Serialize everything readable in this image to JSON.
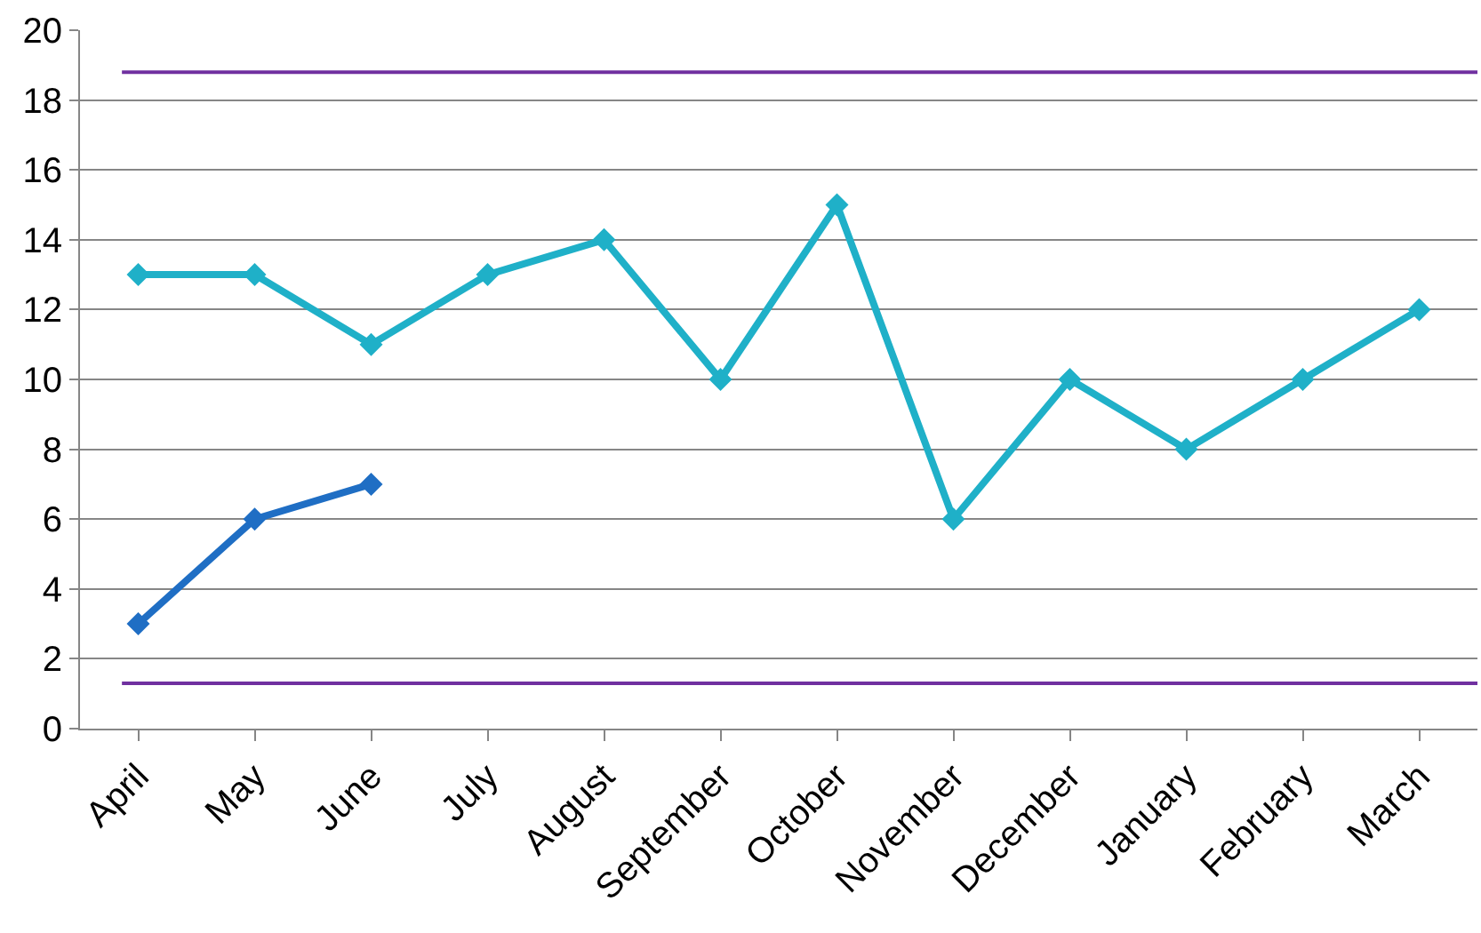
{
  "chart_data": {
    "type": "line",
    "categories": [
      "April",
      "May",
      "June",
      "July",
      "August",
      "September",
      "October",
      "November",
      "December",
      "January",
      "February",
      "March"
    ],
    "series": [
      {
        "color": "#1fb0c8",
        "values": [
          13,
          13,
          11,
          13,
          14,
          10,
          15,
          6,
          10,
          8,
          10,
          12
        ]
      },
      {
        "color": "#1f6ec4",
        "values": [
          3,
          6,
          7,
          null,
          null,
          null,
          null,
          null,
          null,
          null,
          null,
          null
        ]
      }
    ],
    "ylim": [
      0,
      20
    ],
    "yticks": [
      0,
      2,
      4,
      6,
      8,
      10,
      12,
      14,
      16,
      18,
      20
    ],
    "grid": "y",
    "marker": "diamond",
    "line_style": "solid",
    "ref_lines": [
      {
        "axis": "y",
        "value": 18.8,
        "color": "#7030a0"
      },
      {
        "axis": "y",
        "value": 1.3,
        "color": "#7030a0"
      }
    ]
  }
}
